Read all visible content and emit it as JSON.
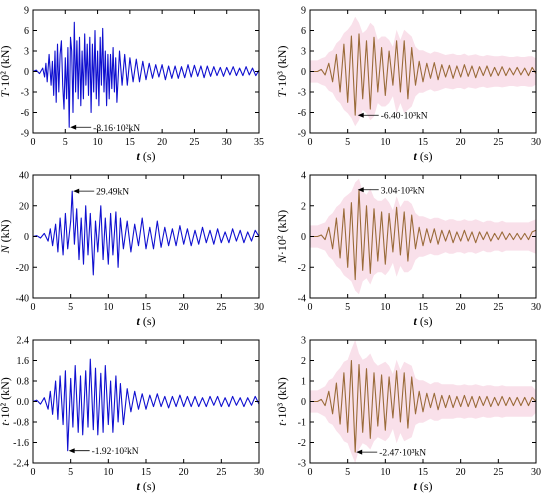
{
  "chart_data": [
    {
      "type": "line",
      "panel": "top-left",
      "line_color": "#1010d0",
      "xlabel_italic": "t",
      "xlabel_unit": " (s)",
      "ylabel_italic": "T",
      "ylabel_unit": "·10² (kN)",
      "xlim": [
        0,
        35
      ],
      "ylim": [
        -9,
        9
      ],
      "xticks": [
        0,
        5,
        10,
        15,
        20,
        25,
        30,
        35
      ],
      "yticks": [
        -9,
        -6,
        -3,
        0,
        3,
        6,
        9
      ],
      "x": [
        0,
        0.5,
        1,
        1.5,
        1.8,
        2,
        2.2,
        2.5,
        2.8,
        3,
        3.2,
        3.4,
        3.6,
        3.8,
        4,
        4.2,
        4.4,
        4.6,
        4.8,
        5,
        5.2,
        5.4,
        5.6,
        5.8,
        6,
        6.2,
        6.4,
        6.6,
        6.8,
        7,
        7.2,
        7.4,
        7.6,
        7.8,
        8,
        8.2,
        8.4,
        8.6,
        8.8,
        9,
        9.2,
        9.4,
        9.6,
        9.8,
        10,
        10.2,
        10.4,
        10.6,
        10.8,
        11,
        11.2,
        11.4,
        11.6,
        11.8,
        12,
        12.2,
        12.4,
        12.6,
        12.8,
        13,
        13.4,
        13.8,
        14.2,
        14.6,
        15,
        15.5,
        16,
        16.5,
        17,
        17.5,
        18,
        18.5,
        19,
        19.5,
        20,
        20.5,
        21,
        21.5,
        22,
        22.5,
        23,
        23.5,
        24,
        24.5,
        25,
        25.5,
        26,
        26.5,
        27,
        27.5,
        28,
        28.5,
        29,
        29.5,
        30,
        30.5,
        31,
        31.5,
        32,
        32.5,
        33,
        33.5,
        34,
        34.5,
        35
      ],
      "y": [
        0,
        0.2,
        -0.3,
        0.5,
        -0.8,
        1.2,
        -1.5,
        2.5,
        -2,
        1.5,
        -3.5,
        3,
        -4.5,
        4,
        -3,
        2.5,
        4.5,
        -2,
        -5.5,
        2,
        -4,
        3.5,
        -8.16,
        5,
        3,
        -6,
        7.2,
        -3,
        4.5,
        -4,
        5,
        -5,
        3,
        -4,
        5.5,
        -2,
        4,
        -3.5,
        5,
        -6,
        4,
        -3,
        6,
        -4,
        3,
        -5,
        5,
        -2,
        6.3,
        -3,
        3,
        -5,
        2.5,
        -4,
        2.5,
        -2.5,
        3.5,
        -3,
        2,
        -4.5,
        3,
        -2,
        2.5,
        -2,
        2,
        -1.5,
        1.8,
        -1.5,
        1.5,
        -1.2,
        1.2,
        -1,
        1,
        -0.8,
        1,
        -1.2,
        0.8,
        -1,
        0.8,
        -1,
        0.7,
        -0.9,
        1,
        -0.8,
        0.9,
        -0.7,
        0.8,
        -0.9,
        0.8,
        -0.7,
        0.7,
        -0.6,
        0.6,
        -0.7,
        0.6,
        -0.5,
        0.7,
        -0.6,
        0.5,
        -0.6,
        0.7,
        -0.5,
        0.5,
        -0.6,
        0.2
      ],
      "annotation": {
        "text": "-8.16·10²kN",
        "x": 5.6,
        "y": -8.16
      }
    },
    {
      "type": "line",
      "panel": "top-right",
      "line_color": "#9a6b3a",
      "band_color": "#f7d6e3",
      "xlabel_italic": "t",
      "xlabel_unit": " (s)",
      "ylabel_italic": "T",
      "ylabel_unit": "·10³ (kN)",
      "xlim": [
        0,
        30
      ],
      "ylim": [
        -9,
        9
      ],
      "xticks": [
        0,
        5,
        10,
        15,
        20,
        25,
        30
      ],
      "yticks": [
        -9,
        -6,
        -3,
        0,
        3,
        6,
        9
      ],
      "x": [
        0,
        1,
        1.5,
        2,
        2.5,
        3,
        3.5,
        4,
        4.5,
        5,
        5.5,
        6,
        6.5,
        7,
        7.5,
        8,
        8.5,
        9,
        9.5,
        10,
        10.5,
        11,
        11.5,
        12,
        12.5,
        13,
        13.5,
        14,
        14.5,
        15,
        15.5,
        16,
        16.5,
        17,
        17.5,
        18,
        18.5,
        19,
        19.5,
        20,
        20.5,
        21,
        21.5,
        22,
        22.5,
        23,
        23.5,
        24,
        24.5,
        25,
        25.5,
        26,
        26.5,
        27,
        27.5,
        28,
        28.5,
        29,
        29.5,
        30
      ],
      "y": [
        0,
        0,
        0.3,
        -0.5,
        1.2,
        -1.5,
        2.5,
        -3,
        4,
        -4.5,
        5.2,
        -6.4,
        5.5,
        -4,
        4.5,
        -5.5,
        5,
        -3,
        3.5,
        -3.5,
        3,
        -2,
        4.5,
        -3,
        4.5,
        -4,
        3.5,
        -2,
        1.5,
        -1.5,
        1.2,
        -1,
        1.3,
        -1.2,
        1,
        -0.8,
        0.9,
        -1,
        0.8,
        -0.8,
        1,
        -0.7,
        0.8,
        -0.9,
        0.7,
        -0.6,
        0.8,
        -0.7,
        0.6,
        -0.6,
        0.7,
        -0.6,
        0.5,
        -0.5,
        0.6,
        -0.5,
        0.5,
        -0.6,
        0.6,
        -0.3
      ],
      "annotation": {
        "text": "-6.40·10³kN",
        "x": 6.2,
        "y": -6.4
      }
    },
    {
      "type": "line",
      "panel": "middle-left",
      "line_color": "#1010d0",
      "xlabel_italic": "t",
      "xlabel_unit": " (s)",
      "ylabel_italic": "N",
      "ylabel_unit": " (kN)",
      "xlim": [
        0,
        30
      ],
      "ylim": [
        -40,
        40
      ],
      "xticks": [
        0,
        5,
        10,
        15,
        20,
        25,
        30
      ],
      "yticks": [
        -40,
        -20,
        0,
        20,
        40
      ],
      "x": [
        0,
        0.5,
        1,
        1.5,
        2,
        2.3,
        2.6,
        3,
        3.3,
        3.6,
        4,
        4.3,
        4.6,
        5,
        5.2,
        5.5,
        5.8,
        6.1,
        6.4,
        6.7,
        7,
        7.3,
        7.6,
        8,
        8.3,
        8.6,
        9,
        9.3,
        9.6,
        10,
        10.3,
        10.6,
        11,
        11.3,
        11.6,
        12,
        12.5,
        13,
        13.5,
        14,
        14.5,
        15,
        15.5,
        16,
        16.5,
        17,
        17.5,
        18,
        18.5,
        19,
        19.5,
        20,
        20.5,
        21,
        21.5,
        22,
        22.5,
        23,
        23.5,
        24,
        24.5,
        25,
        25.5,
        26,
        26.5,
        27,
        27.5,
        28,
        28.5,
        29,
        29.5,
        30
      ],
      "y": [
        0,
        0.5,
        -1,
        2,
        -3,
        5,
        -6,
        8,
        -10,
        12,
        -12,
        15,
        -8,
        10,
        29.49,
        -5,
        18,
        -15,
        12,
        -18,
        20,
        -12,
        15,
        -25,
        10,
        -10,
        20,
        -15,
        12,
        -18,
        15,
        -12,
        16,
        -20,
        12,
        -8,
        10,
        -10,
        8,
        -6,
        12,
        -8,
        6,
        -8,
        10,
        -7,
        6,
        -6,
        5,
        -6,
        7,
        -5,
        5,
        -6,
        4,
        -5,
        6,
        -4,
        4,
        -5,
        5,
        -4,
        3,
        -4,
        5,
        -3,
        4,
        -4,
        3,
        -3,
        4,
        0
      ],
      "annotation": {
        "text": "29.49kN",
        "x": 5.2,
        "y": 29.49
      }
    },
    {
      "type": "line",
      "panel": "middle-right",
      "line_color": "#9a6b3a",
      "band_color": "#f7d6e3",
      "xlabel_italic": "t",
      "xlabel_unit": " (s)",
      "ylabel_italic": "N",
      "ylabel_unit": "·10² (kN)",
      "xlim": [
        0,
        30
      ],
      "ylim": [
        -4,
        4
      ],
      "xticks": [
        0,
        5,
        10,
        15,
        20,
        25,
        30
      ],
      "yticks": [
        -4,
        -2,
        0,
        2,
        4
      ],
      "x": [
        0,
        1,
        1.5,
        2,
        2.5,
        3,
        3.5,
        4,
        4.5,
        5,
        5.5,
        6,
        6.5,
        7,
        7.5,
        8,
        8.5,
        9,
        9.5,
        10,
        10.5,
        11,
        11.5,
        12,
        12.5,
        13,
        13.5,
        14,
        14.5,
        15,
        15.5,
        16,
        16.5,
        17,
        17.5,
        18,
        18.5,
        19,
        19.5,
        20,
        20.5,
        21,
        21.5,
        22,
        22.5,
        23,
        23.5,
        24,
        24.5,
        25,
        25.5,
        26,
        26.5,
        27,
        27.5,
        28,
        28.5,
        29,
        29.5,
        30
      ],
      "y": [
        0,
        0,
        0.1,
        -0.2,
        0.6,
        -0.8,
        1.2,
        -1.4,
        1.8,
        -2,
        2.2,
        -2.8,
        3.04,
        -2.2,
        2,
        -2.4,
        1.8,
        -1.6,
        1.6,
        -1.8,
        1.5,
        -1,
        1.9,
        -1.2,
        1.6,
        -1.6,
        1.4,
        -0.8,
        0.6,
        -0.6,
        0.5,
        -0.4,
        0.5,
        -0.5,
        0.4,
        -0.3,
        0.4,
        -0.4,
        0.3,
        -0.3,
        0.4,
        -0.3,
        0.3,
        -0.4,
        0.3,
        -0.2,
        0.3,
        -0.3,
        0.2,
        -0.2,
        0.3,
        -0.2,
        0.2,
        -0.2,
        0.2,
        -0.2,
        0.2,
        -0.2,
        0.3,
        0.4
      ],
      "annotation": {
        "text": "3.04·10²kN",
        "x": 6.2,
        "y": 3.04
      }
    },
    {
      "type": "line",
      "panel": "bottom-left",
      "line_color": "#1010d0",
      "xlabel_italic": "t",
      "xlabel_unit": " (s)",
      "ylabel_italic": "t",
      "ylabel_unit": "·10² (kN)",
      "xlim": [
        0,
        30
      ],
      "ylim": [
        -2.4,
        2.4
      ],
      "xticks": [
        0,
        5,
        10,
        15,
        20,
        25,
        30
      ],
      "yticks": [
        -2.4,
        -1.6,
        -0.8,
        0.0,
        0.8,
        1.6,
        2.4
      ],
      "ytick_labels": [
        "-2.4",
        "-1.6",
        "-0.8",
        "0.0",
        "0.8",
        "1.6",
        "2.4"
      ],
      "x": [
        0,
        0.5,
        1,
        1.5,
        2,
        2.3,
        2.6,
        3,
        3.3,
        3.6,
        4,
        4.3,
        4.6,
        5,
        5.3,
        5.6,
        6,
        6.3,
        6.6,
        7,
        7.3,
        7.6,
        8,
        8.3,
        8.6,
        9,
        9.3,
        9.6,
        10,
        10.3,
        10.6,
        11,
        11.3,
        11.6,
        12,
        12.5,
        13,
        13.5,
        14,
        14.5,
        15,
        15.5,
        16,
        16.5,
        17,
        17.5,
        18,
        18.5,
        19,
        19.5,
        20,
        20.5,
        21,
        21.5,
        22,
        22.5,
        23,
        23.5,
        24,
        24.5,
        25,
        25.5,
        26,
        26.5,
        27,
        27.5,
        28,
        28.5,
        29,
        29.5,
        30
      ],
      "y": [
        0,
        0.05,
        -0.1,
        0.15,
        -0.3,
        0.4,
        -0.5,
        0.8,
        -0.7,
        1.0,
        -0.9,
        1.2,
        -1.92,
        0.9,
        -1.0,
        1.4,
        -1.2,
        1.0,
        -1.3,
        1.2,
        -1.0,
        1.65,
        -1.1,
        1.3,
        -1.3,
        1.1,
        -1.2,
        1.4,
        -0.9,
        0.8,
        -1.2,
        1.0,
        -0.8,
        0.7,
        -0.9,
        0.5,
        -0.4,
        0.4,
        -0.3,
        0.3,
        -0.3,
        0.25,
        -0.2,
        0.3,
        -0.2,
        0.2,
        -0.25,
        0.2,
        -0.2,
        0.25,
        -0.2,
        0.2,
        -0.2,
        0.2,
        -0.2,
        0.15,
        -0.2,
        0.2,
        -0.15,
        0.2,
        -0.2,
        0.15,
        -0.2,
        0.2,
        -0.15,
        0.15,
        -0.2,
        0.15,
        -0.15,
        0.2,
        -0.1
      ],
      "annotation": {
        "text": "-1.92·10²kN",
        "x": 4.6,
        "y": -1.92
      }
    },
    {
      "type": "line",
      "panel": "bottom-right",
      "line_color": "#9a6b3a",
      "band_color": "#f7d6e3",
      "xlabel_italic": "t",
      "xlabel_unit": " (s)",
      "ylabel_italic": "t",
      "ylabel_unit": "·10³ (kN)",
      "xlim": [
        0,
        30
      ],
      "ylim": [
        -3,
        3
      ],
      "xticks": [
        0,
        5,
        10,
        15,
        20,
        25,
        30
      ],
      "yticks": [
        -3,
        -2,
        -1,
        0,
        1,
        2,
        3
      ],
      "x": [
        0,
        1,
        1.5,
        2,
        2.5,
        3,
        3.5,
        4,
        4.5,
        5,
        5.5,
        6,
        6.5,
        7,
        7.5,
        8,
        8.5,
        9,
        9.5,
        10,
        10.5,
        11,
        11.5,
        12,
        12.5,
        13,
        13.5,
        14,
        14.5,
        15,
        15.5,
        16,
        16.5,
        17,
        17.5,
        18,
        18.5,
        19,
        19.5,
        20,
        20.5,
        21,
        21.5,
        22,
        22.5,
        23,
        23.5,
        24,
        24.5,
        25,
        25.5,
        26,
        26.5,
        27,
        27.5,
        28,
        28.5,
        29,
        29.5,
        30
      ],
      "y": [
        0,
        0,
        0.1,
        -0.2,
        0.5,
        -0.6,
        0.9,
        -1.1,
        1.4,
        -1.5,
        2.0,
        -2.47,
        1.8,
        -1.5,
        1.6,
        -1.8,
        1.4,
        -1.2,
        1.3,
        -1.4,
        1.2,
        -0.8,
        1.5,
        -1.0,
        1.4,
        -1.3,
        1.2,
        -0.6,
        0.5,
        -0.5,
        0.4,
        -0.3,
        0.4,
        -0.4,
        0.3,
        -0.3,
        0.3,
        -0.3,
        0.25,
        -0.25,
        0.3,
        -0.25,
        0.25,
        -0.3,
        0.25,
        -0.2,
        0.25,
        -0.25,
        0.2,
        -0.2,
        0.25,
        -0.2,
        0.2,
        -0.2,
        0.2,
        -0.2,
        0.2,
        -0.2,
        0.2,
        0.0
      ],
      "annotation": {
        "text": "-2.47·10³kN",
        "x": 6.0,
        "y": -2.47
      }
    }
  ]
}
